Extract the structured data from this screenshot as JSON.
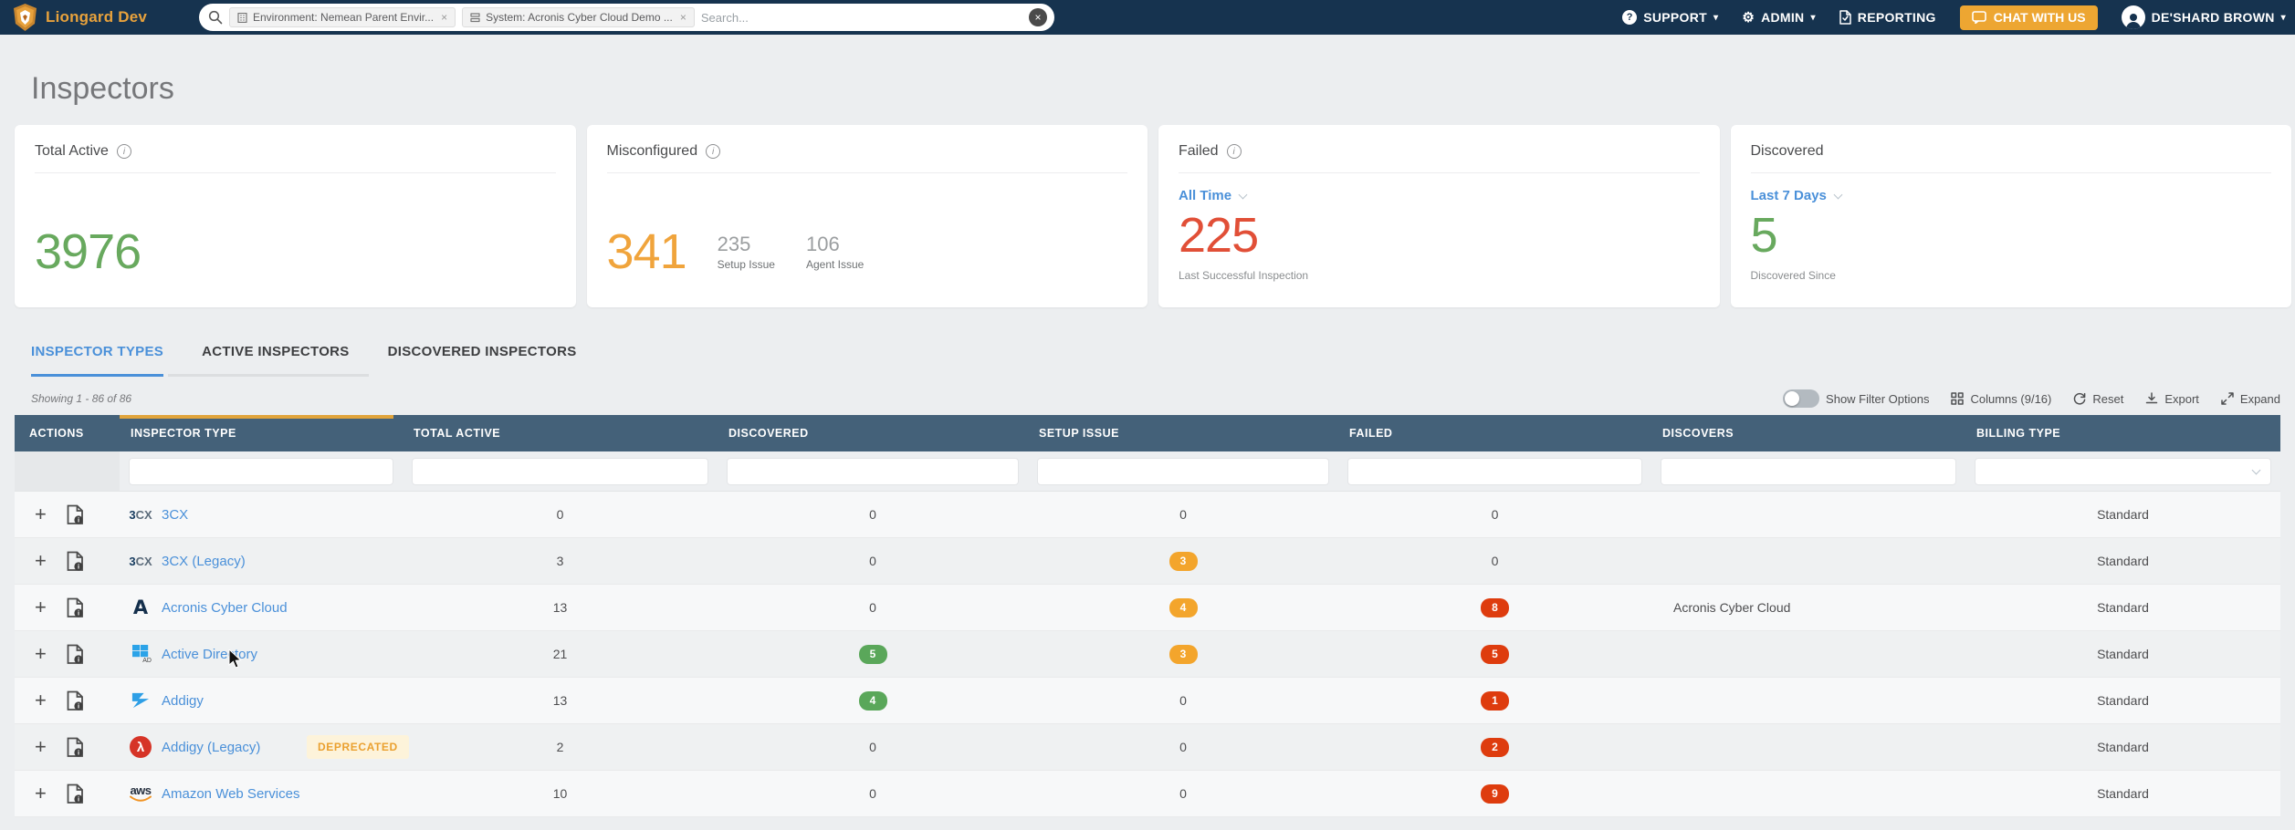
{
  "colors": {
    "navbar_bg": "#16334f",
    "brand_orange": "#e8a23c",
    "table_header_bg": "#446179",
    "link_blue": "#4a90d9",
    "success_green": "#68a95e",
    "warning_orange": "#f3a52c",
    "danger_red": "#de3c0e",
    "sort_bar_orange": "#e1a43b"
  },
  "navbar": {
    "brand": "Liongard Dev",
    "search": {
      "placeholder": "Search...",
      "chips": [
        {
          "icon": "environment-icon",
          "label": "Environment: Nemean Parent Envir...",
          "close": "×"
        },
        {
          "icon": "system-icon",
          "label": "System: Acronis Cyber Cloud Demo ...",
          "close": "×"
        }
      ]
    },
    "menu": {
      "support": "SUPPORT",
      "admin": "ADMIN",
      "reporting": "REPORTING",
      "chat": "CHAT WITH US",
      "user": "DE'SHARD BROWN"
    }
  },
  "page": {
    "title": "Inspectors"
  },
  "cards": {
    "total_active": {
      "title": "Total Active",
      "value": "3976"
    },
    "misconfigured": {
      "title": "Misconfigured",
      "value": "341",
      "substats": [
        {
          "value": "235",
          "label": "Setup Issue"
        },
        {
          "value": "106",
          "label": "Agent Issue"
        }
      ]
    },
    "failed": {
      "title": "Failed",
      "range": "All Time",
      "value": "225",
      "caption": "Last Successful Inspection"
    },
    "discovered": {
      "title": "Discovered",
      "range": "Last 7 Days",
      "value": "5",
      "caption": "Discovered Since"
    }
  },
  "tabs": [
    {
      "label": "INSPECTOR TYPES",
      "active": true
    },
    {
      "label": "ACTIVE INSPECTORS",
      "active": false
    },
    {
      "label": "DISCOVERED INSPECTORS",
      "active": false
    }
  ],
  "table": {
    "showing": "Showing 1 - 86 of 86",
    "toolbar": {
      "filter_toggle": "Show Filter Options",
      "columns": "Columns (9/16)",
      "reset": "Reset",
      "export": "Export",
      "expand": "Expand"
    },
    "columns": [
      "ACTIONS",
      "INSPECTOR TYPE",
      "TOTAL ACTIVE",
      "DISCOVERED",
      "SETUP ISSUE",
      "FAILED",
      "DISCOVERS",
      "BILLING TYPE"
    ],
    "rows": [
      {
        "icon": "3cx-logo-icon",
        "name": "3CX",
        "deprecated": "",
        "total_active": "0",
        "discovered": "0",
        "discovered_badge": "",
        "setup_issue": "0",
        "setup_badge": "",
        "failed": "0",
        "failed_badge": "",
        "discovers": "",
        "billing": "Standard"
      },
      {
        "icon": "3cx-logo-icon",
        "name": "3CX (Legacy)",
        "deprecated": "",
        "total_active": "3",
        "discovered": "0",
        "discovered_badge": "",
        "setup_issue": "3",
        "setup_badge": "orange",
        "failed": "0",
        "failed_badge": "",
        "discovers": "",
        "billing": "Standard"
      },
      {
        "icon": "acronis-logo-icon",
        "name": "Acronis Cyber Cloud",
        "deprecated": "",
        "total_active": "13",
        "discovered": "0",
        "discovered_badge": "",
        "setup_issue": "4",
        "setup_badge": "orange",
        "failed": "8",
        "failed_badge": "red",
        "discovers": "Acronis Cyber Cloud",
        "billing": "Standard"
      },
      {
        "icon": "active-directory-logo-icon",
        "name": "Active Directory",
        "deprecated": "",
        "total_active": "21",
        "discovered": "5",
        "discovered_badge": "green",
        "setup_issue": "3",
        "setup_badge": "orange",
        "failed": "5",
        "failed_badge": "red",
        "discovers": "",
        "billing": "Standard"
      },
      {
        "icon": "addigy-logo-icon",
        "name": "Addigy",
        "deprecated": "",
        "total_active": "13",
        "discovered": "4",
        "discovered_badge": "green",
        "setup_issue": "0",
        "setup_badge": "",
        "failed": "1",
        "failed_badge": "red",
        "discovers": "",
        "billing": "Standard"
      },
      {
        "icon": "addigy-legacy-logo-icon",
        "name": "Addigy (Legacy)",
        "deprecated": "DEPRECATED",
        "total_active": "2",
        "discovered": "0",
        "discovered_badge": "",
        "setup_issue": "0",
        "setup_badge": "",
        "failed": "2",
        "failed_badge": "red",
        "discovers": "",
        "billing": "Standard"
      },
      {
        "icon": "aws-logo-icon",
        "name": "Amazon Web Services",
        "deprecated": "",
        "total_active": "10",
        "discovered": "0",
        "discovered_badge": "",
        "setup_issue": "0",
        "setup_badge": "",
        "failed": "9",
        "failed_badge": "red",
        "discovers": "",
        "billing": "Standard"
      }
    ]
  }
}
